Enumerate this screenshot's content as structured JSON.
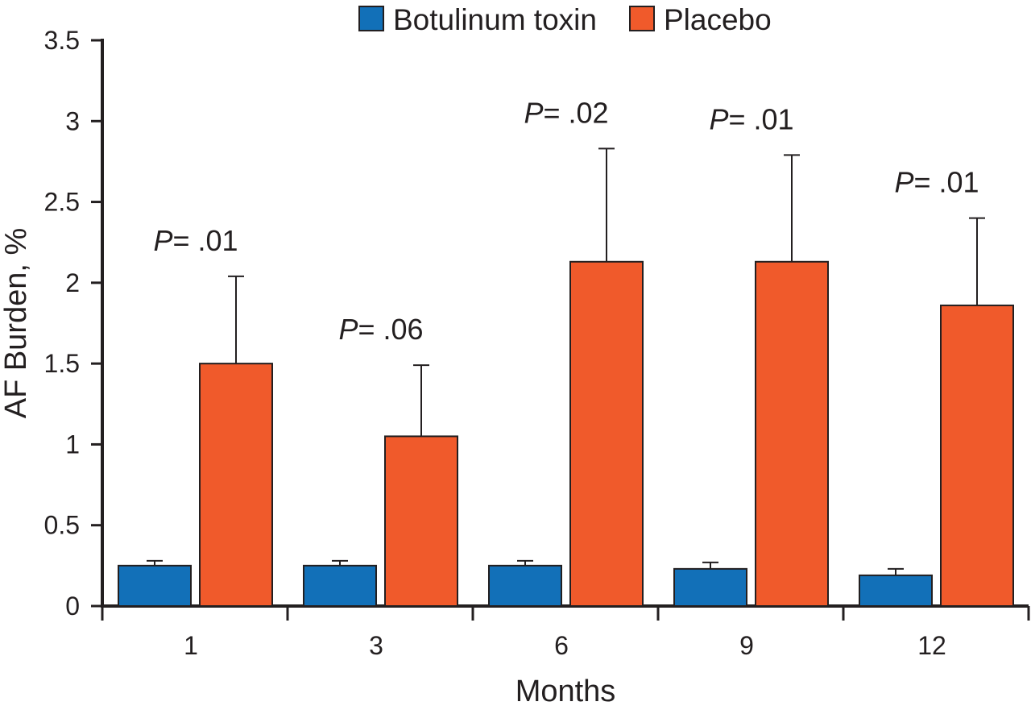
{
  "chart_data": {
    "type": "bar",
    "title": "",
    "xlabel": "Months",
    "ylabel": "AF Burden, %",
    "categories": [
      "1",
      "3",
      "6",
      "9",
      "12"
    ],
    "ylim": [
      0,
      3.5
    ],
    "yticks": [
      0,
      0.5,
      1,
      1.5,
      2,
      2.5,
      3,
      3.5
    ],
    "ytick_labels": [
      "0",
      "0.5",
      "1",
      "1.5",
      "2",
      "2.5",
      "3",
      "3.5"
    ],
    "grid": false,
    "legend_position": "top-center",
    "series": [
      {
        "name": "Botulinum toxin",
        "color": "#1270b8",
        "values": [
          0.25,
          0.25,
          0.25,
          0.23,
          0.19
        ],
        "error_upper": [
          0.28,
          0.28,
          0.28,
          0.27,
          0.23
        ]
      },
      {
        "name": "Placebo",
        "color": "#f05a2b",
        "values": [
          1.5,
          1.05,
          2.13,
          2.13,
          1.86
        ],
        "error_upper": [
          2.04,
          1.49,
          2.83,
          2.79,
          2.4
        ]
      }
    ],
    "annotations": [
      {
        "category": "1",
        "p": "P",
        "value": "= .01"
      },
      {
        "category": "3",
        "p": "P",
        "value": "= .06"
      },
      {
        "category": "6",
        "p": "P",
        "value": "= .02"
      },
      {
        "category": "9",
        "p": "P",
        "value": "= .01"
      },
      {
        "category": "12",
        "p": "P",
        "value": "= .01"
      }
    ]
  }
}
